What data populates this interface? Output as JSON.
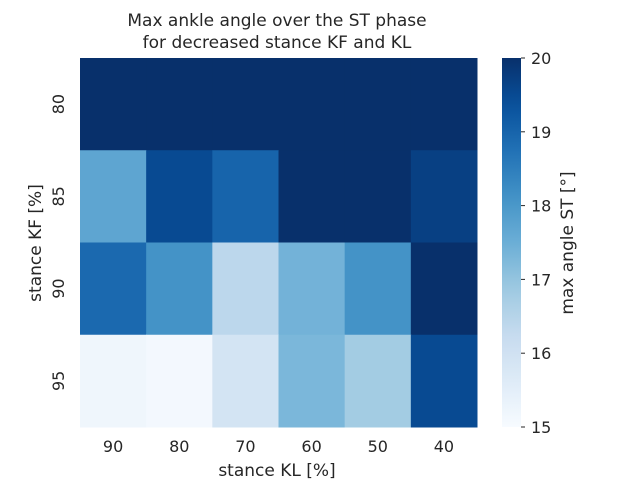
{
  "chart_data": {
    "type": "heatmap",
    "title_lines": [
      "Max ankle angle over the ST phase",
      "for decreased stance KF and KL"
    ],
    "xlabel": "stance KL [%]",
    "ylabel": "stance KF [%]",
    "x_categories": [
      "90",
      "80",
      "70",
      "60",
      "50",
      "40"
    ],
    "y_categories": [
      "80",
      "85",
      "90",
      "95"
    ],
    "values": [
      [
        20.0,
        20.0,
        20.0,
        20.0,
        20.0,
        20.0
      ],
      [
        17.7,
        19.5,
        19.0,
        20.0,
        20.0,
        19.7
      ],
      [
        18.9,
        18.1,
        16.4,
        17.4,
        18.1,
        20.0
      ],
      [
        15.2,
        15.1,
        15.9,
        17.3,
        16.8,
        19.5
      ]
    ],
    "colorbar": {
      "label": "max angle ST [°]",
      "min": 15,
      "max": 20,
      "ticks": [
        15,
        16,
        17,
        18,
        19,
        20
      ],
      "colormap": "Blues"
    }
  }
}
